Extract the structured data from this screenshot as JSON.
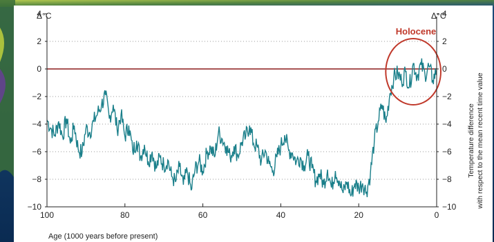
{
  "chart_data": {
    "type": "line",
    "title": "",
    "xlabel": "Age (1000 years before present)",
    "ylabel": "Temperature difference with respect to the mean recent time value",
    "ylabel_lines": [
      "Temperature difference",
      "with respect to the mean recent time value"
    ],
    "unit_left": "Δ°C",
    "unit_right": "Δ°C",
    "xlim": [
      100,
      0
    ],
    "ylim": [
      -10,
      4
    ],
    "x_ticks": [
      100,
      80,
      60,
      40,
      20,
      0
    ],
    "x_tick_labels": [
      "100",
      "80",
      "60",
      "40",
      "20",
      "0"
    ],
    "y_ticks": [
      4,
      2,
      0,
      -2,
      -4,
      -6,
      -8,
      -10
    ],
    "y_tick_labels": [
      "4",
      "2",
      "0",
      "−2",
      "−4",
      "−6",
      "−8",
      "−10"
    ],
    "grid": "horizontal dotted",
    "annotations": [
      {
        "text": "Holocene",
        "x_range": [
          12,
          0
        ]
      }
    ],
    "colors": {
      "series": "#1a7f8a",
      "zero_line": "#8b1a1a",
      "annotation": "#c0392b",
      "grid": "#999999"
    },
    "series": [
      {
        "x": [
          100,
          99,
          98,
          97,
          96,
          95,
          94,
          93,
          92,
          91,
          90,
          89,
          88,
          87,
          86,
          85,
          84,
          83,
          82,
          81,
          80,
          79,
          78,
          77,
          76,
          75,
          74,
          73,
          72,
          71,
          70,
          69,
          68,
          67,
          66,
          65,
          64,
          63,
          62,
          61,
          60,
          59,
          58,
          57,
          56,
          55,
          54,
          53,
          52,
          51,
          50,
          49,
          48,
          47,
          46,
          45,
          44,
          43,
          42,
          41,
          40,
          39,
          38,
          37,
          36,
          35,
          34,
          33,
          32,
          31,
          30,
          29,
          28,
          27,
          26,
          25,
          24,
          23,
          22,
          21,
          20,
          19,
          18,
          17,
          16,
          15,
          14,
          13,
          12,
          11,
          10,
          9,
          8,
          7,
          6,
          5,
          4,
          3,
          2,
          1,
          0
        ],
        "y": [
          -3.7,
          -4.3,
          -4.8,
          -3.8,
          -4.9,
          -3.6,
          -5.4,
          -4.1,
          -5.8,
          -6.1,
          -4.3,
          -4.6,
          -3.8,
          -3.2,
          -2.6,
          -1.9,
          -3.6,
          -2.6,
          -4.4,
          -3.3,
          -4.9,
          -4.1,
          -6.0,
          -5.2,
          -6.4,
          -5.5,
          -6.7,
          -6.0,
          -7.2,
          -6.4,
          -7.0,
          -6.6,
          -7.8,
          -8.2,
          -7.1,
          -8.4,
          -7.4,
          -8.8,
          -7.3,
          -6.7,
          -7.4,
          -6.1,
          -5.7,
          -6.4,
          -4.6,
          -5.1,
          -5.6,
          -6.4,
          -5.6,
          -6.3,
          -5.3,
          -4.9,
          -4.1,
          -5.4,
          -5.7,
          -6.7,
          -5.9,
          -6.9,
          -7.4,
          -6.4,
          -5.6,
          -4.8,
          -5.9,
          -6.1,
          -6.7,
          -6.4,
          -7.0,
          -6.3,
          -7.2,
          -8.1,
          -7.6,
          -8.4,
          -7.3,
          -8.6,
          -7.4,
          -8.1,
          -9.0,
          -8.2,
          -9.2,
          -8.3,
          -8.6,
          -8.3,
          -8.9,
          -7.6,
          -5.2,
          -3.8,
          -2.6,
          -3.9,
          -1.8,
          -0.6,
          -0.3,
          -0.9,
          -0.2,
          -1.3,
          0.4,
          -0.5,
          0.3,
          -0.4,
          0.2,
          -0.8,
          -0.1
        ]
      }
    ]
  }
}
